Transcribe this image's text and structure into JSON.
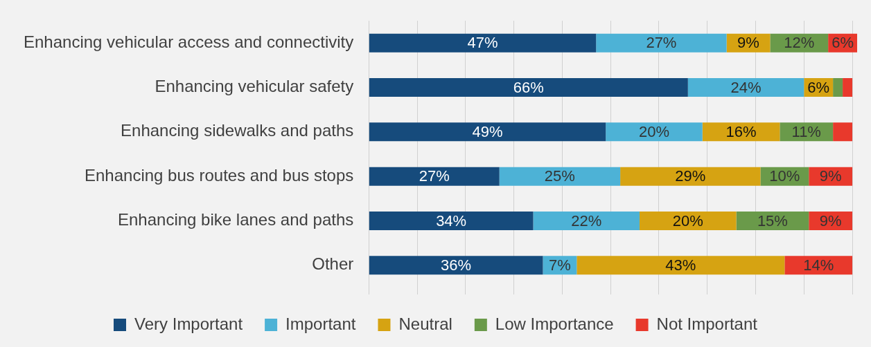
{
  "chart_data": {
    "type": "bar",
    "orientation": "horizontal",
    "stacked": true,
    "categories": [
      "Enhancing vehicular access and connectivity",
      "Enhancing vehicular safety",
      "Enhancing sidewalks and paths",
      "Enhancing bus routes and bus stops",
      "Enhancing bike lanes and paths",
      "Other"
    ],
    "series": [
      {
        "name": "Very Important",
        "color": "#164b7c",
        "values": [
          47,
          66,
          49,
          27,
          34,
          36
        ],
        "value_labels": [
          "47%",
          "66%",
          "49%",
          "27%",
          "34%",
          "36%"
        ]
      },
      {
        "name": "Important",
        "color": "#4db2d6",
        "values": [
          27,
          24,
          20,
          25,
          22,
          7
        ],
        "value_labels": [
          "27%",
          "24%",
          "20%",
          "25%",
          "22%",
          "7%"
        ]
      },
      {
        "name": "Neutral",
        "color": "#d6a312",
        "values": [
          9,
          6,
          16,
          29,
          20,
          43
        ],
        "value_labels": [
          "9%",
          "6%",
          "16%",
          "29%",
          "20%",
          "43%"
        ]
      },
      {
        "name": "Low Importance",
        "color": "#6a9a4a",
        "values": [
          12,
          2,
          11,
          10,
          15,
          0
        ],
        "value_labels": [
          "12%",
          null,
          "11%",
          "10%",
          "15%",
          null
        ]
      },
      {
        "name": "Not Important",
        "color": "#e8392c",
        "values": [
          6,
          2,
          4,
          9,
          9,
          14
        ],
        "value_labels": [
          "6%",
          null,
          null,
          "9%",
          "9%",
          "14%"
        ]
      }
    ],
    "xlim": [
      0,
      101
    ],
    "xticks": [
      {
        "value": 0,
        "label": null
      },
      {
        "value": 10,
        "label": null
      },
      {
        "value": 20,
        "label": null
      },
      {
        "value": 30,
        "label": null
      },
      {
        "value": 40,
        "label": null
      },
      {
        "value": 50,
        "label": null
      },
      {
        "value": 60,
        "label": null
      },
      {
        "value": 70,
        "label": null
      },
      {
        "value": 80,
        "label": null
      },
      {
        "value": 90,
        "label": null
      },
      {
        "value": 100,
        "label": null
      }
    ],
    "tick_labels": "y",
    "grid": "x",
    "legend": "bottom"
  }
}
